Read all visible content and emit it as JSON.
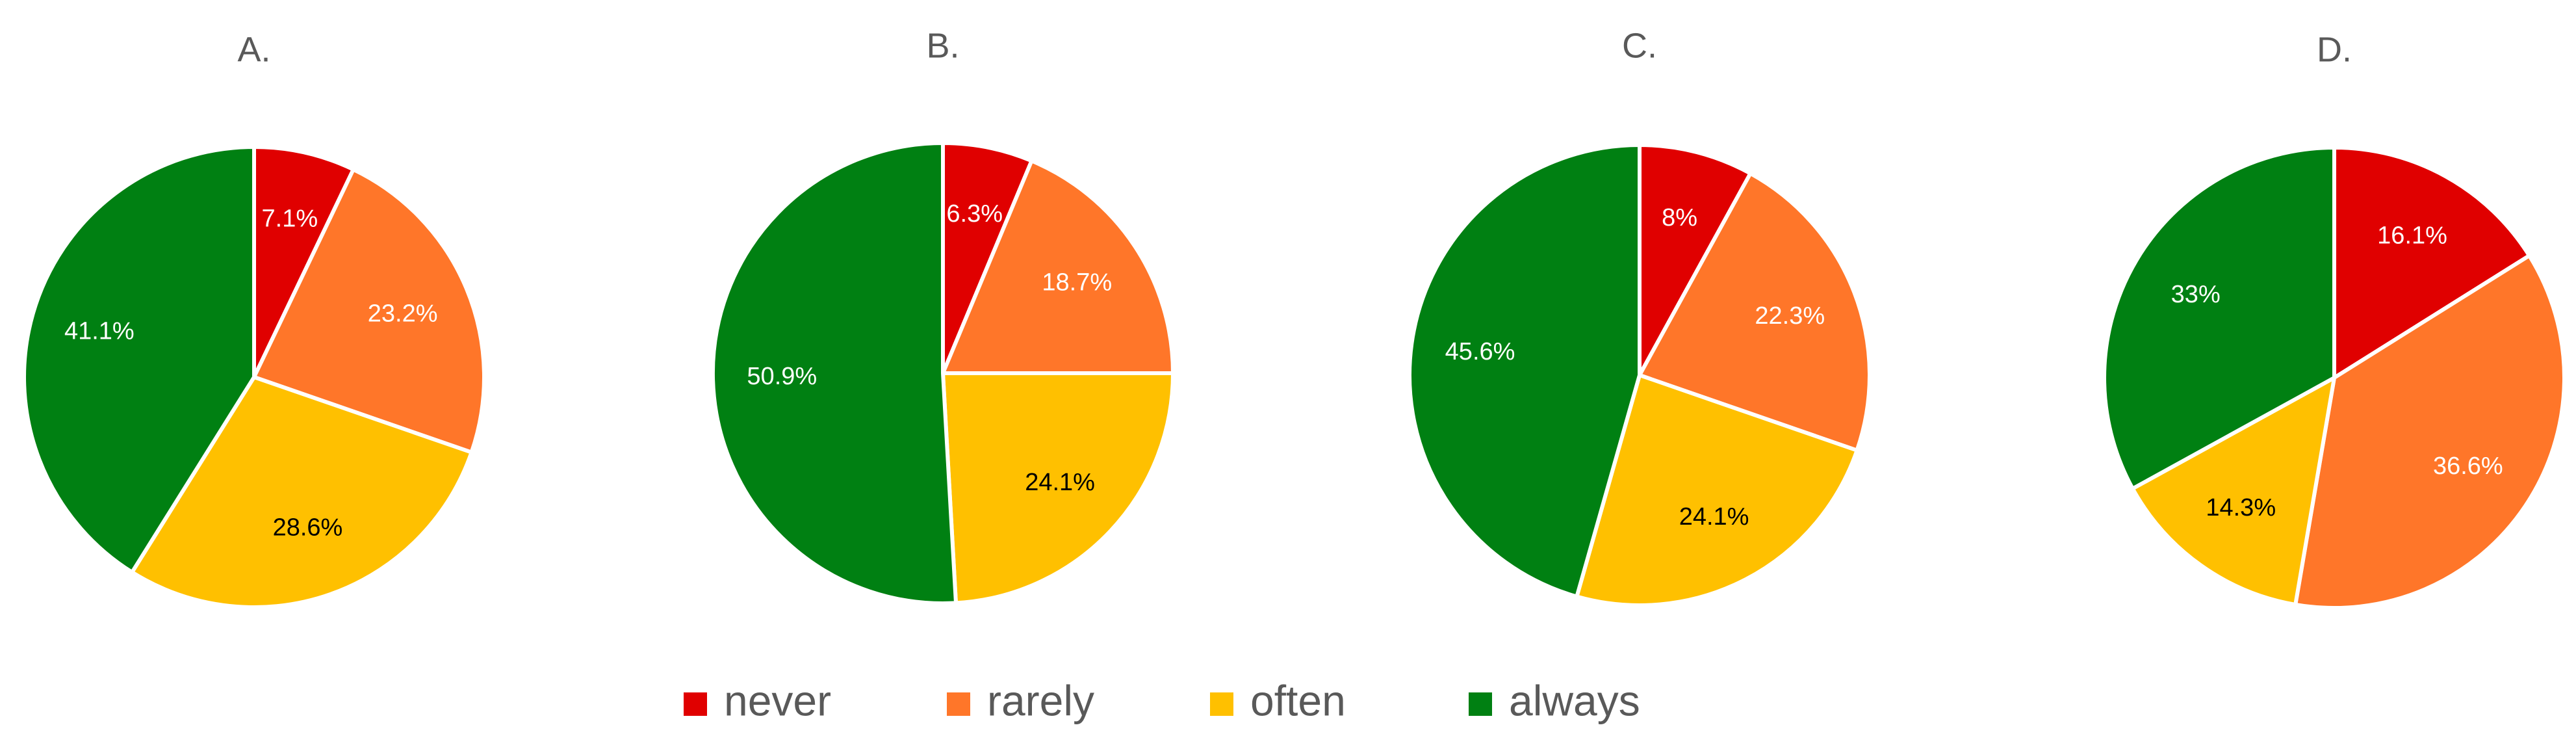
{
  "chart_data": [
    {
      "type": "pie",
      "title": "A.",
      "categories": [
        "never",
        "rarely",
        "often",
        "always"
      ],
      "values": [
        7.1,
        23.2,
        28.6,
        41.1
      ],
      "labels": [
        "7.1%",
        "23.2%",
        "28.6%",
        "41.1%"
      ]
    },
    {
      "type": "pie",
      "title": "B.",
      "categories": [
        "never",
        "rarely",
        "often",
        "always"
      ],
      "values": [
        6.3,
        18.7,
        24.1,
        50.9
      ],
      "labels": [
        "6.3%",
        "18.7%",
        "24.1%",
        "50.9%"
      ]
    },
    {
      "type": "pie",
      "title": "C.",
      "categories": [
        "never",
        "rarely",
        "often",
        "always"
      ],
      "values": [
        8,
        22.3,
        24.1,
        45.6
      ],
      "labels": [
        "8%",
        "22.3%",
        "24.1%",
        "45.6%"
      ]
    },
    {
      "type": "pie",
      "title": "D.",
      "categories": [
        "never",
        "rarely",
        "often",
        "always"
      ],
      "values": [
        16.1,
        36.6,
        14.3,
        33
      ],
      "labels": [
        "16.1%",
        "36.6%",
        "14.3%",
        "33%"
      ]
    }
  ],
  "legend": {
    "placement": "bottom",
    "items": [
      {
        "label": "never",
        "color": "#e00000"
      },
      {
        "label": "rarely",
        "color": "#ff7629"
      },
      {
        "label": "often",
        "color": "#ffc000"
      },
      {
        "label": "always",
        "color": "#008012"
      }
    ]
  },
  "label_colors": {
    "never": "#ffffff",
    "rarely": "#ffffff",
    "often": "#000000",
    "always": "#ffffff"
  }
}
